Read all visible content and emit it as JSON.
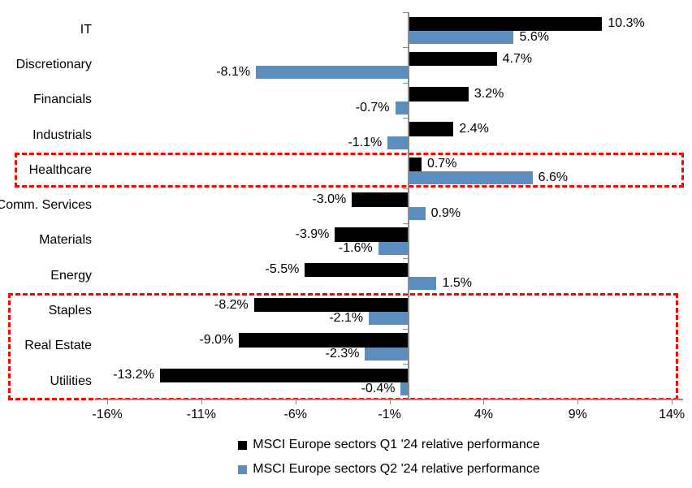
{
  "chart_data": {
    "type": "bar",
    "orientation": "horizontal",
    "title": "",
    "xlabel": "",
    "ylabel": "",
    "categories": [
      "IT",
      "Discretionary",
      "Financials",
      "Industrials",
      "Healthcare",
      "Comm. Services",
      "Materials",
      "Energy",
      "Staples",
      "Real Estate",
      "Utilities"
    ],
    "series": [
      {
        "name": "MSCI Europe sectors Q1 '24 relative performance",
        "color": "#000000",
        "values": [
          10.3,
          4.7,
          3.2,
          2.4,
          0.7,
          -3.0,
          -3.9,
          -5.5,
          -8.2,
          -9.0,
          -13.2
        ],
        "labels": [
          "10.3%",
          "4.7%",
          "3.2%",
          "2.4%",
          "0.7%",
          "-3.0%",
          "-3.9%",
          "-5.5%",
          "-8.2%",
          "-9.0%",
          "-13.2%"
        ]
      },
      {
        "name": "MSCI Europe sectors Q2 '24 relative performance",
        "color": "#5b8dbd",
        "values": [
          5.6,
          -8.1,
          -0.7,
          -1.1,
          6.6,
          0.9,
          -1.6,
          1.5,
          -2.1,
          -2.3,
          -0.4
        ],
        "labels": [
          "5.6%",
          "-8.1%",
          "-0.7%",
          "-1.1%",
          "6.6%",
          "0.9%",
          "-1.6%",
          "1.5%",
          "-2.1%",
          "-2.3%",
          "-0.4%"
        ]
      }
    ],
    "x_ticks": [
      {
        "value": -16,
        "label": "-16%"
      },
      {
        "value": -11,
        "label": "-11%"
      },
      {
        "value": -6,
        "label": "-6%"
      },
      {
        "value": -1,
        "label": "-1%"
      },
      {
        "value": 4,
        "label": "4%"
      },
      {
        "value": 9,
        "label": "9%"
      },
      {
        "value": 14,
        "label": "14%"
      }
    ],
    "xlim": [
      -16.65,
      14.6
    ],
    "grid": false,
    "legend_position": "bottom-center",
    "annotations": [
      {
        "type": "highlight-box",
        "color": "#fe0000",
        "sectors": [
          "Healthcare"
        ]
      },
      {
        "type": "highlight-box",
        "color": "#fe0000",
        "sectors": [
          "Staples",
          "Real Estate",
          "Utilities"
        ]
      }
    ]
  }
}
